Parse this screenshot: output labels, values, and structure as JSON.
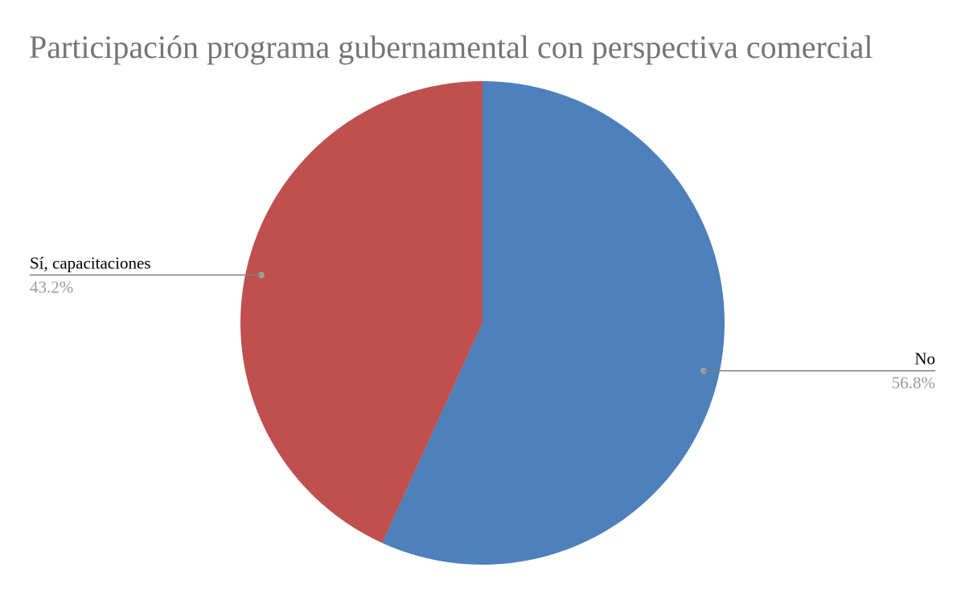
{
  "chart_data": {
    "type": "pie",
    "title": "Participación programa gubernamental con perspectiva comercial",
    "slices": [
      {
        "label": "No",
        "value": 56.8,
        "value_label": "56.8%",
        "color": "#4e80bb"
      },
      {
        "label": "Sí, capacitaciones",
        "value": 43.2,
        "value_label": "43.2%",
        "color": "#bf504e"
      }
    ],
    "start_angle": "12 o'clock",
    "direction": "clockwise",
    "label_positions": [
      "right",
      "left"
    ],
    "leader_line_color": "#7f7f7f"
  }
}
